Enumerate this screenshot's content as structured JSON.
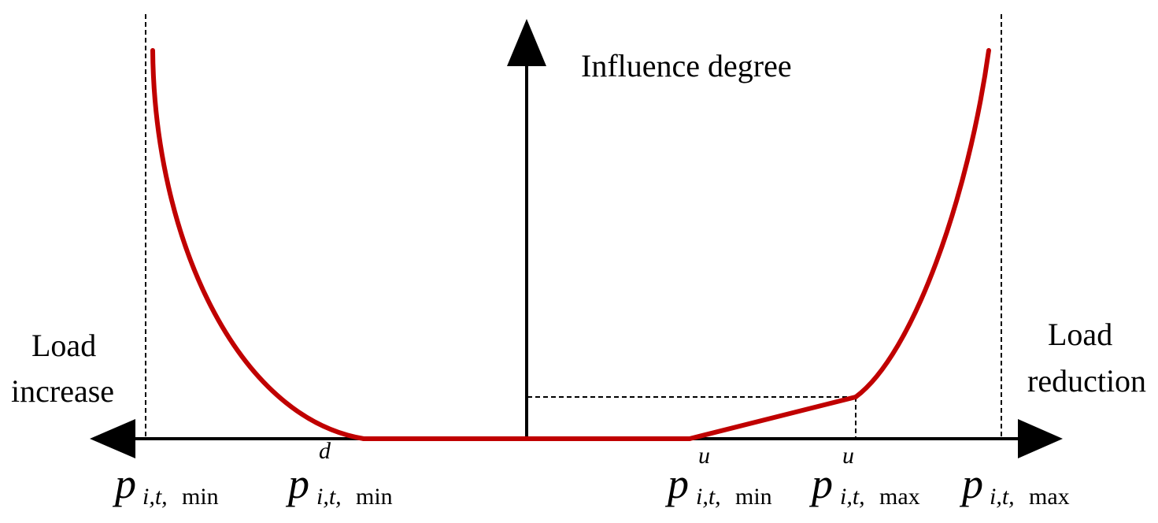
{
  "diagram": {
    "y_axis_label": "Influence degree",
    "left_label": {
      "line1": "Load",
      "line2": "increase"
    },
    "right_label": {
      "line1": "Load",
      "line2": "reduction"
    },
    "ticks": {
      "p_min": {
        "base": "p",
        "sub_italic": "i,t,",
        "sub_upright": "min",
        "sup": ""
      },
      "p_d_min": {
        "base": "p",
        "sub_italic": "i,t,",
        "sub_upright": "min",
        "sup": "d"
      },
      "p_u_min": {
        "base": "p",
        "sub_italic": "i,t,",
        "sub_upright": "min",
        "sup": "u"
      },
      "p_u_max": {
        "base": "p",
        "sub_italic": "i,t,",
        "sub_upright": "max",
        "sup": "u"
      },
      "p_max": {
        "base": "p",
        "sub_italic": "i,t,",
        "sub_upright": "max",
        "sup": ""
      }
    },
    "colors": {
      "curve": "#c00000",
      "axes": "#000000",
      "guides": "#000000"
    }
  }
}
